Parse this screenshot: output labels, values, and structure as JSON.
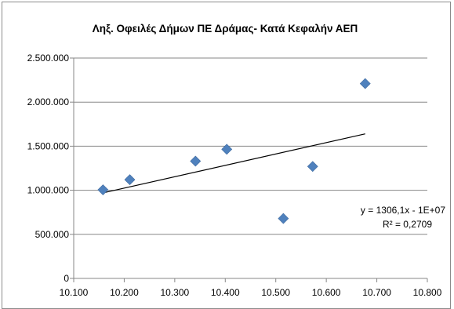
{
  "chart_data": {
    "type": "scatter",
    "title": "Ληξ. Οφειλές Δήμων ΠΕ Δράμας- Κατά Κεφαλήν ΑΕΠ",
    "xlabel": "",
    "ylabel": "",
    "xlim": [
      10100,
      10800
    ],
    "ylim": [
      0,
      2500000
    ],
    "x_ticks": [
      10100,
      10200,
      10300,
      10400,
      10500,
      10600,
      10700,
      10800
    ],
    "x_tick_labels": [
      "10.100",
      "10.200",
      "10.300",
      "10.400",
      "10.500",
      "10.600",
      "10.700",
      "10.800"
    ],
    "y_ticks": [
      0,
      500000,
      1000000,
      1500000,
      2000000,
      2500000
    ],
    "y_tick_labels": [
      "0",
      "500.000",
      "1.000.000",
      "1.500.000",
      "2.000.000",
      "2.500.000"
    ],
    "grid": "horizontal",
    "legend": "none",
    "series": [
      {
        "marker": "diamond",
        "color": "#4f81bd",
        "points": [
          {
            "x": 10158,
            "y": 1005000
          },
          {
            "x": 10211,
            "y": 1120000
          },
          {
            "x": 10341,
            "y": 1330000
          },
          {
            "x": 10403,
            "y": 1465000
          },
          {
            "x": 10515,
            "y": 680000
          },
          {
            "x": 10573,
            "y": 1270000
          },
          {
            "x": 10677,
            "y": 2210000
          }
        ]
      }
    ],
    "trendline": {
      "type": "linear",
      "color": "#000000",
      "x_range": [
        10158,
        10677
      ],
      "y_range": [
        970000,
        1640000
      ],
      "equation": "y = 1306,1x - 1E+07",
      "r_squared": "R² = 0,2709"
    }
  }
}
